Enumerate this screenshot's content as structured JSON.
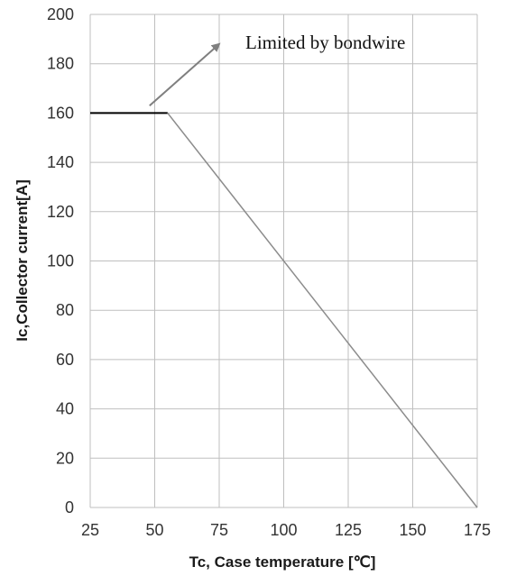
{
  "chart_data": {
    "type": "line",
    "xlabel": "Tc, Case temperature [℃]",
    "ylabel": "Ic,Collector current[A]",
    "xlim": [
      25,
      175
    ],
    "ylim": [
      0,
      200
    ],
    "x_ticks": [
      "25",
      "50",
      "75",
      "100",
      "125",
      "150",
      "175"
    ],
    "y_ticks": [
      "0",
      "20",
      "40",
      "60",
      "80",
      "100",
      "120",
      "140",
      "160",
      "180",
      "200"
    ],
    "grid": true,
    "series": [
      {
        "segments": [
          {
            "x": [
              25,
              55
            ],
            "y": [
              160,
              160
            ],
            "color": "#000000"
          },
          {
            "x": [
              55,
              175
            ],
            "y": [
              160,
              0
            ],
            "color": "#8c8c8c"
          }
        ]
      }
    ],
    "annotations": [
      {
        "text": "Limited by bondwire",
        "arrow_from": [
          48,
          163
        ],
        "arrow_to": [
          75,
          188
        ],
        "color": "#7f7f7f"
      }
    ]
  }
}
